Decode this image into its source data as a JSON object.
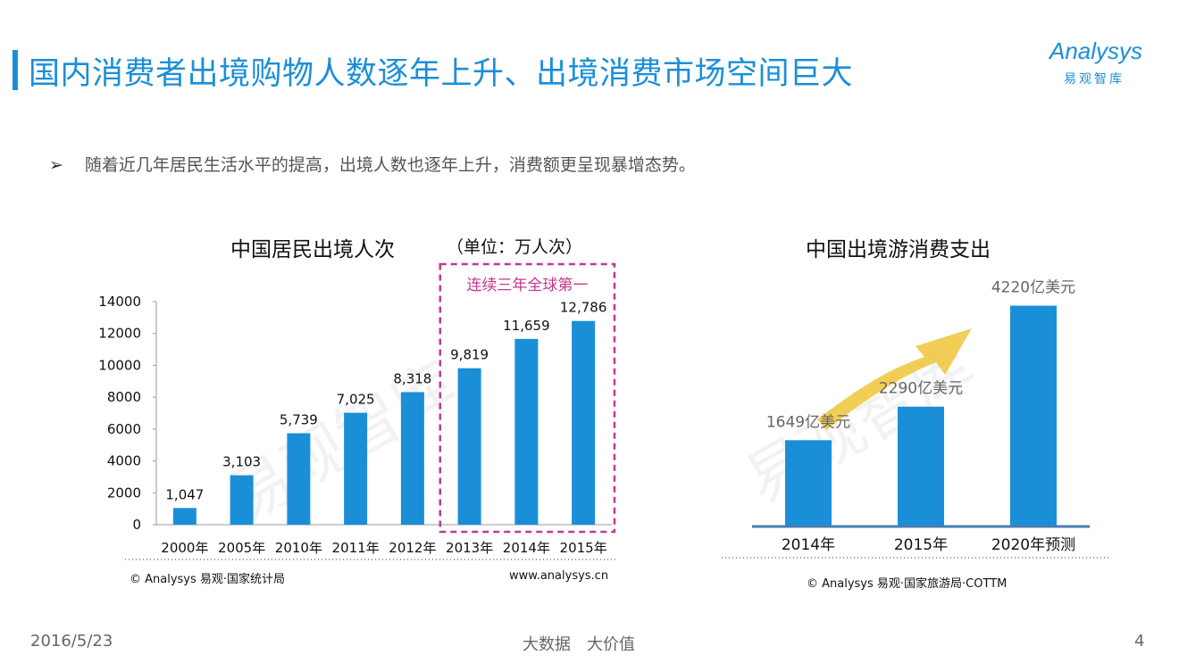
{
  "page": {
    "title": "国内消费者出境购物人数逐年上升、出境消费市场空间巨大",
    "bullet_marker": "➢",
    "bullet": "随着近几年居民生活水平的提高，出境人数也逐年上升，消费额更呈现暴增态势。",
    "logo": {
      "word": "Analysys",
      "sub": "易观智库"
    },
    "watermark": "易观智库",
    "footer": {
      "date": "2016/5/23",
      "center": "大数据　大价值",
      "page": "4"
    }
  },
  "colors": {
    "accent": "#1a8fd8",
    "bar": "#1a8fd8",
    "highlight": "#c6378f",
    "arrow": "#f0c53a"
  },
  "chart_data": [
    {
      "type": "bar",
      "title": "中国居民出境人次",
      "unit": "（单位：万人次）",
      "categories": [
        "2000年",
        "2005年",
        "2010年",
        "2011年",
        "2012年",
        "2013年",
        "2014年",
        "2015年"
      ],
      "values": [
        1047,
        3103,
        5739,
        7025,
        8318,
        9819,
        11659,
        12786
      ],
      "value_labels": [
        "1,047",
        "3,103",
        "5,739",
        "7,025",
        "8,318",
        "9,819",
        "11,659",
        "12,786"
      ],
      "ylim": [
        0,
        14000
      ],
      "yticks": [
        0,
        2000,
        4000,
        6000,
        8000,
        10000,
        12000,
        14000
      ],
      "highlight_label": "连续三年全球第一",
      "highlight_categories": [
        "2013年",
        "2014年",
        "2015年"
      ],
      "source": "© Analysys 易观·国家统计局",
      "website": "www.analysys.cn"
    },
    {
      "type": "bar",
      "title": "中国出境游消费支出",
      "categories": [
        "2014年",
        "2015年",
        "2020年预测"
      ],
      "values": [
        1649,
        2290,
        4220
      ],
      "value_labels": [
        "1649亿美元",
        "2290亿美元",
        "4220亿美元"
      ],
      "ylim": [
        0,
        4400
      ],
      "source": "© Analysys 易观·国家旅游局·COTTM"
    }
  ]
}
